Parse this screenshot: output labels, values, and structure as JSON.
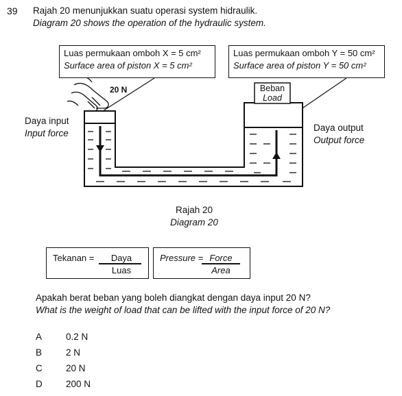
{
  "question": {
    "number": "39",
    "stem_ms": "Rajah 20 menunjukkan suatu operasi system hidraulik.",
    "stem_en": "Diagram 20 shows the operation of the hydraulic system."
  },
  "diagram": {
    "box_x_ms": "Luas permukaan omboh X = 5 cm²",
    "box_x_en": "Surface area of piston X = 5 cm²",
    "box_y_ms": "Luas permukaan omboh Y = 50 cm²",
    "box_y_en": "Surface area of piston Y = 50 cm²",
    "force_label": "20 N",
    "load_ms": "Beban",
    "load_en": "Load",
    "input_ms": "Daya input",
    "input_en": "Input force",
    "output_ms": "Daya output",
    "output_en": "Output force",
    "caption_ms": "Rajah 20",
    "caption_en": "Diagram 20"
  },
  "formula": {
    "ms_lhs": "Tekanan =",
    "ms_num": "Daya",
    "ms_den": "Luas",
    "en_lhs": "Pressure =",
    "en_num": "Force",
    "en_den": "Area"
  },
  "prompt": {
    "ms": "Apakah berat beban yang boleh diangkat dengan daya input 20 N?",
    "en": "What is the weight of load that can be lifted with the input force of 20 N?"
  },
  "options": [
    {
      "letter": "A",
      "text": "0.2 N"
    },
    {
      "letter": "B",
      "text": "2 N"
    },
    {
      "letter": "C",
      "text": "20 N"
    },
    {
      "letter": "D",
      "text": "200 N"
    }
  ]
}
